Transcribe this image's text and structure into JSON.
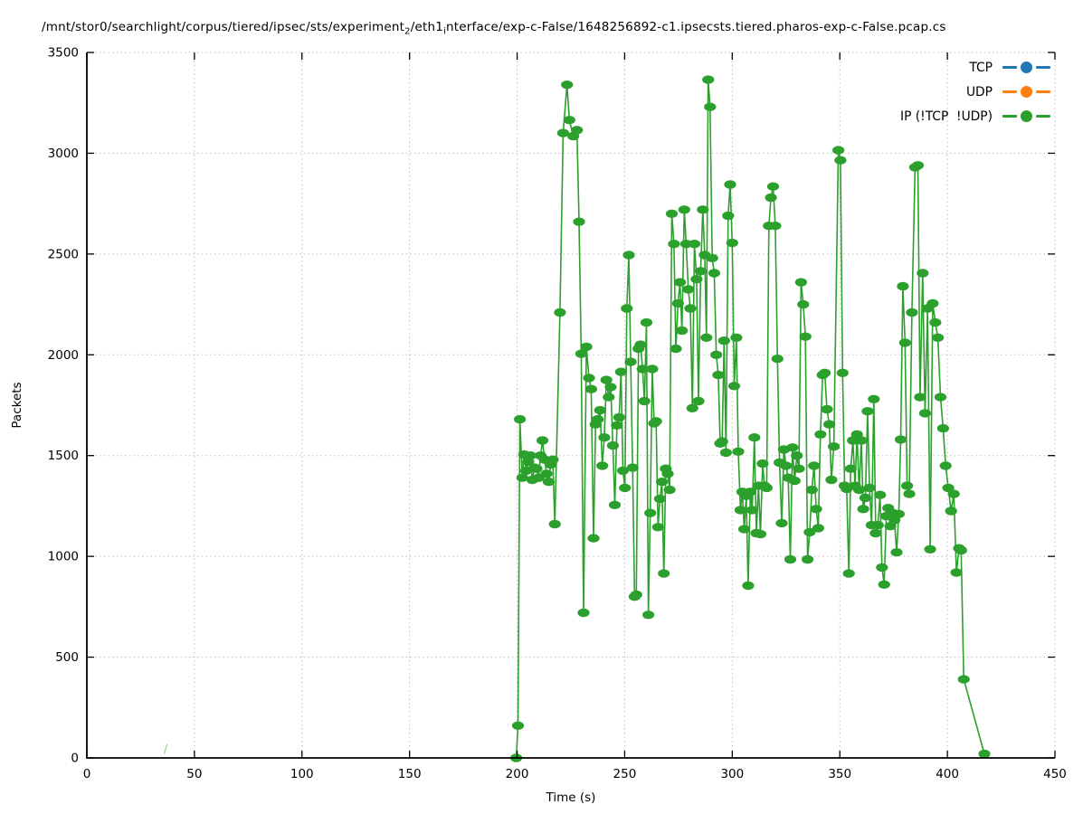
{
  "chart_data": {
    "type": "line",
    "title_parts": [
      {
        "text": "/mnt/stor0/searchlight/corpus/tiered/ipsec/sts/experiment",
        "sub": false
      },
      {
        "text": "2",
        "sub": true
      },
      {
        "text": "/eth1",
        "sub": false
      },
      {
        "text": "i",
        "sub": true
      },
      {
        "text": "nterface/exp-c-False/1648256892-c1.ipsecsts.tiered.pharos-exp-c-False.pcap.cs",
        "sub": false
      }
    ],
    "xlabel": "Time (s)",
    "ylabel": "Packets",
    "xlim": [
      0,
      450
    ],
    "ylim": [
      0,
      3500
    ],
    "x_ticks": [
      0,
      50,
      100,
      150,
      200,
      250,
      300,
      350,
      400,
      450
    ],
    "y_ticks": [
      0,
      500,
      1000,
      1500,
      2000,
      2500,
      3000,
      3500
    ],
    "grid": true,
    "grid_color": "#bdbdbd",
    "legend_position": "top-right",
    "legend": [
      {
        "name": "TCP",
        "color": "#1f77b4"
      },
      {
        "name": "UDP",
        "color": "#ff7f0e"
      },
      {
        "name": "IP (!TCP  !UDP)",
        "color": "#2ca02c"
      }
    ],
    "series": [
      {
        "name": "TCP",
        "color": "#1f77b4",
        "points": []
      },
      {
        "name": "UDP",
        "color": "#ff7f0e",
        "points": []
      },
      {
        "name": "IP (!TCP  !UDP)",
        "color": "#2ca02c",
        "points": [
          [
            199.6,
            0
          ],
          [
            200.4,
            160
          ],
          [
            201.3,
            1680
          ],
          [
            202.4,
            1390
          ],
          [
            203.3,
            1505
          ],
          [
            204.2,
            1425
          ],
          [
            205.2,
            1470
          ],
          [
            206.2,
            1500
          ],
          [
            207.1,
            1380
          ],
          [
            208.1,
            1440
          ],
          [
            209.0,
            1435
          ],
          [
            210.0,
            1390
          ],
          [
            210.9,
            1500
          ],
          [
            211.8,
            1575
          ],
          [
            212.8,
            1480
          ],
          [
            213.7,
            1410
          ],
          [
            214.7,
            1370
          ],
          [
            215.6,
            1455
          ],
          [
            216.6,
            1480
          ],
          [
            217.5,
            1160
          ],
          [
            219.9,
            2210
          ],
          [
            221.4,
            3100
          ],
          [
            223.2,
            3340
          ],
          [
            224.3,
            3165
          ],
          [
            226.1,
            3085
          ],
          [
            227.8,
            3115
          ],
          [
            228.8,
            2660
          ],
          [
            229.8,
            2005
          ],
          [
            230.9,
            720
          ],
          [
            232.2,
            2040
          ],
          [
            233.4,
            1885
          ],
          [
            234.4,
            1830
          ],
          [
            235.5,
            1090
          ],
          [
            236.5,
            1655
          ],
          [
            237.5,
            1680
          ],
          [
            238.6,
            1725
          ],
          [
            239.6,
            1450
          ],
          [
            240.5,
            1590
          ],
          [
            241.5,
            1875
          ],
          [
            242.6,
            1790
          ],
          [
            243.5,
            1840
          ],
          [
            244.5,
            1550
          ],
          [
            245.4,
            1255
          ],
          [
            246.4,
            1650
          ],
          [
            247.4,
            1690
          ],
          [
            248.3,
            1915
          ],
          [
            249.2,
            1425
          ],
          [
            250.1,
            1340
          ],
          [
            251.0,
            2230
          ],
          [
            251.9,
            2495
          ],
          [
            252.8,
            1965
          ],
          [
            253.7,
            1440
          ],
          [
            254.6,
            800
          ],
          [
            255.4,
            810
          ],
          [
            256.4,
            2030
          ],
          [
            257.4,
            2050
          ],
          [
            258.3,
            1930
          ],
          [
            259.2,
            1770
          ],
          [
            260.1,
            2160
          ],
          [
            261.0,
            710
          ],
          [
            261.9,
            1215
          ],
          [
            262.8,
            1930
          ],
          [
            263.7,
            1660
          ],
          [
            264.6,
            1670
          ],
          [
            265.5,
            1145
          ],
          [
            266.4,
            1285
          ],
          [
            267.3,
            1370
          ],
          [
            268.2,
            915
          ],
          [
            269.1,
            1435
          ],
          [
            270.0,
            1410
          ],
          [
            270.9,
            1330
          ],
          [
            271.9,
            2700
          ],
          [
            272.9,
            2550
          ],
          [
            273.8,
            2030
          ],
          [
            274.8,
            2255
          ],
          [
            275.7,
            2360
          ],
          [
            276.6,
            2120
          ],
          [
            277.7,
            2720
          ],
          [
            278.6,
            2550
          ],
          [
            279.6,
            2325
          ],
          [
            280.5,
            2230
          ],
          [
            281.5,
            1735
          ],
          [
            282.4,
            2550
          ],
          [
            283.4,
            2375
          ],
          [
            284.3,
            1770
          ],
          [
            285.3,
            2415
          ],
          [
            286.3,
            2720
          ],
          [
            287.2,
            2495
          ],
          [
            288.0,
            2085
          ],
          [
            288.8,
            3365
          ],
          [
            289.7,
            3230
          ],
          [
            290.7,
            2480
          ],
          [
            291.6,
            2405
          ],
          [
            292.6,
            2000
          ],
          [
            293.5,
            1900
          ],
          [
            294.4,
            1560
          ],
          [
            295.3,
            1570
          ],
          [
            296.2,
            2070
          ],
          [
            297.1,
            1515
          ],
          [
            298.1,
            2690
          ],
          [
            299.0,
            2845
          ],
          [
            300.0,
            2555
          ],
          [
            300.9,
            1845
          ],
          [
            301.9,
            2085
          ],
          [
            302.8,
            1520
          ],
          [
            303.8,
            1230
          ],
          [
            304.7,
            1320
          ],
          [
            305.6,
            1135
          ],
          [
            306.5,
            1300
          ],
          [
            307.4,
            855
          ],
          [
            308.4,
            1320
          ],
          [
            309.3,
            1230
          ],
          [
            310.3,
            1590
          ],
          [
            311.2,
            1115
          ],
          [
            312.2,
            1350
          ],
          [
            313.1,
            1110
          ],
          [
            314.1,
            1460
          ],
          [
            315.0,
            1350
          ],
          [
            316.0,
            1340
          ],
          [
            317.0,
            2640
          ],
          [
            318.0,
            2780
          ],
          [
            319.0,
            2835
          ],
          [
            320.0,
            2640
          ],
          [
            321.0,
            1980
          ],
          [
            322.0,
            1465
          ],
          [
            323.0,
            1165
          ],
          [
            324.0,
            1530
          ],
          [
            325.0,
            1450
          ],
          [
            326.0,
            1390
          ],
          [
            327.0,
            985
          ],
          [
            328.0,
            1540
          ],
          [
            329.0,
            1375
          ],
          [
            330.0,
            1500
          ],
          [
            331.0,
            1435
          ],
          [
            332.0,
            2360
          ],
          [
            333.0,
            2250
          ],
          [
            334.0,
            2090
          ],
          [
            335.0,
            985
          ],
          [
            336.0,
            1120
          ],
          [
            337.0,
            1330
          ],
          [
            338.0,
            1450
          ],
          [
            339.0,
            1235
          ],
          [
            340.0,
            1140
          ],
          [
            341.0,
            1605
          ],
          [
            342.0,
            1900
          ],
          [
            343.0,
            1910
          ],
          [
            344.0,
            1730
          ],
          [
            345.1,
            1655
          ],
          [
            346.1,
            1380
          ],
          [
            347.2,
            1545
          ],
          [
            349.3,
            3015
          ],
          [
            350.3,
            2965
          ],
          [
            351.3,
            1910
          ],
          [
            352.2,
            1350
          ],
          [
            353.2,
            1335
          ],
          [
            354.2,
            915
          ],
          [
            355.1,
            1435
          ],
          [
            356.1,
            1575
          ],
          [
            357.1,
            1350
          ],
          [
            358.0,
            1605
          ],
          [
            359.0,
            1330
          ],
          [
            360.0,
            1575
          ],
          [
            360.9,
            1235
          ],
          [
            361.9,
            1290
          ],
          [
            362.9,
            1720
          ],
          [
            363.8,
            1340
          ],
          [
            364.8,
            1155
          ],
          [
            365.8,
            1780
          ],
          [
            366.7,
            1115
          ],
          [
            367.7,
            1155
          ],
          [
            368.7,
            1305
          ],
          [
            369.6,
            945
          ],
          [
            370.6,
            860
          ],
          [
            371.6,
            1200
          ],
          [
            372.5,
            1240
          ],
          [
            373.5,
            1150
          ],
          [
            374.5,
            1215
          ],
          [
            375.4,
            1180
          ],
          [
            376.4,
            1020
          ],
          [
            377.4,
            1210
          ],
          [
            378.3,
            1580
          ],
          [
            379.3,
            2340
          ],
          [
            380.3,
            2060
          ],
          [
            381.3,
            1350
          ],
          [
            382.3,
            1310
          ],
          [
            383.5,
            2210
          ],
          [
            385.0,
            2930
          ],
          [
            386.3,
            2940
          ],
          [
            387.3,
            1790
          ],
          [
            388.5,
            2405
          ],
          [
            389.6,
            1710
          ],
          [
            390.8,
            2230
          ],
          [
            392.0,
            1035
          ],
          [
            393.2,
            2255
          ],
          [
            394.4,
            2160
          ],
          [
            395.6,
            2085
          ],
          [
            396.8,
            1790
          ],
          [
            398.0,
            1635
          ],
          [
            399.2,
            1450
          ],
          [
            400.4,
            1340
          ],
          [
            401.7,
            1225
          ],
          [
            403.0,
            1310
          ],
          [
            404.2,
            920
          ],
          [
            405.4,
            1040
          ],
          [
            406.4,
            1030
          ],
          [
            407.6,
            390
          ],
          [
            417.2,
            20
          ]
        ]
      }
    ],
    "stray_segment": {
      "x": [
        35.9,
        37.3
      ],
      "y": [
        20,
        70
      ],
      "color": "#2ca02c",
      "opacity": 0.45
    }
  }
}
